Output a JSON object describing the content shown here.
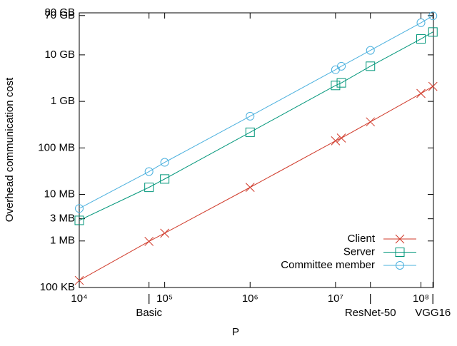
{
  "chart_data": {
    "type": "line",
    "xlabel": "P",
    "ylabel": "Overhead communication cost",
    "xscale": "log",
    "yscale": "log",
    "x": [
      10000,
      65536,
      100000,
      1000000,
      10000000,
      11700000,
      25600000,
      100000000,
      138000000
    ],
    "series": [
      {
        "name": "Client",
        "color": "#d03a2a",
        "marker": "x",
        "values": [
          0.142,
          0.98,
          1.47,
          14.2,
          142,
          163,
          363,
          1480,
          2100
        ]
      },
      {
        "name": "Server",
        "color": "#00967a",
        "marker": "square",
        "values": [
          2.77,
          14.2,
          21.5,
          217,
          2200,
          2500,
          5700,
          22000,
          31000
        ]
      },
      {
        "name": "Committee member",
        "color": "#4ab0de",
        "marker": "circle",
        "values": [
          5.0,
          31,
          49,
          480,
          4800,
          5700,
          12500,
          49000,
          69000
        ]
      }
    ],
    "xlim": [
      10000,
      140000000
    ],
    "ylim": [
      0.1,
      80000
    ],
    "xticks": [
      {
        "value": 10000,
        "label": "10⁴"
      },
      {
        "value": 65536,
        "label": "|"
      },
      {
        "value": 100000,
        "label": "10⁵"
      },
      {
        "value": 1000000,
        "label": "10⁶"
      },
      {
        "value": 10000000,
        "label": "10⁷"
      },
      {
        "value": 25600000,
        "label": "|"
      },
      {
        "value": 100000000,
        "label": "10⁸"
      },
      {
        "value": 138000000,
        "label": "|"
      }
    ],
    "xticks2": [
      {
        "value": 65536,
        "label": "Basic"
      },
      {
        "value": 25600000,
        "label": "ResNet-50"
      },
      {
        "value": 138000000,
        "label": "VGG16"
      }
    ],
    "yticks": [
      {
        "value": 0.1,
        "label": "100 KB"
      },
      {
        "value": 1,
        "label": "1 MB"
      },
      {
        "value": 3,
        "label": "3 MB"
      },
      {
        "value": 10,
        "label": "10 MB"
      },
      {
        "value": 100,
        "label": "100 MB"
      },
      {
        "value": 1000,
        "label": "1 GB"
      },
      {
        "value": 10000,
        "label": "10 GB"
      },
      {
        "value": 70000,
        "label": "70 GB"
      },
      {
        "value": 80000,
        "label": "80 GB"
      }
    ],
    "legend": "bottom-right"
  }
}
